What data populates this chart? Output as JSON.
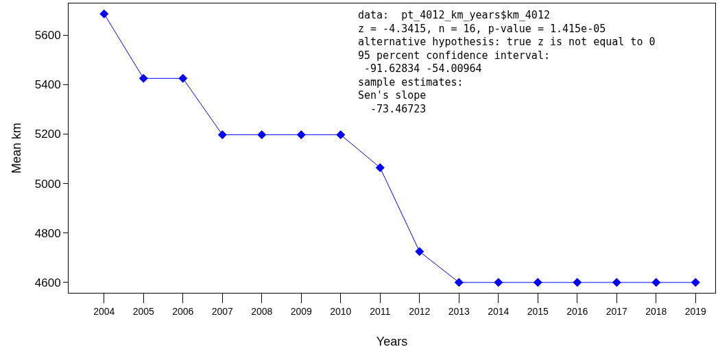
{
  "chart_data": {
    "type": "line",
    "xlabel": "Years",
    "ylabel": "Mean km",
    "categories": [
      "2004",
      "2005",
      "2006",
      "2007",
      "2008",
      "2009",
      "2010",
      "2011",
      "2012",
      "2013",
      "2014",
      "2015",
      "2016",
      "2017",
      "2018",
      "2019"
    ],
    "series": [
      {
        "color": "#0000ff",
        "values": [
          5686,
          5425,
          5425,
          5197,
          5197,
          5197,
          5197,
          5064,
          4725,
          4600,
          4600,
          4600,
          4600,
          4600,
          4600,
          4600
        ]
      }
    ],
    "ylim": [
      4558,
      5728
    ],
    "yticks": [
      4600,
      4800,
      5000,
      5200,
      5400,
      5600
    ],
    "marker": "diamond",
    "line_style": "solid",
    "annotations": [
      "data:  pt_4012_km_years$km_4012\nz = -4.3415, n = 16, p-value = 1.415e-05\nalternative hypothesis: true z is not equal to 0\n95 percent confidence interval:\n -91.62834 -54.00964\nsample estimates:\nSen's slope\n  -73.46723"
    ]
  }
}
